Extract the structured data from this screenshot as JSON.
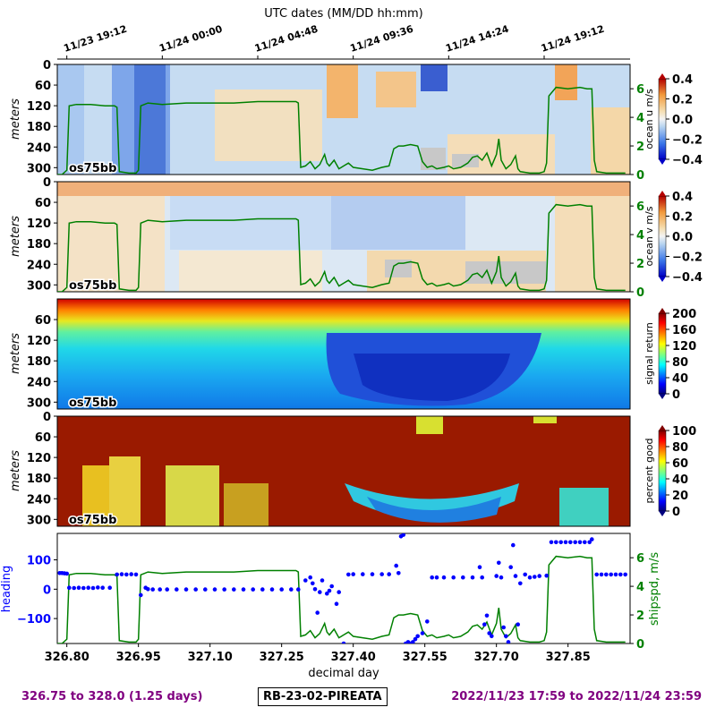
{
  "top_axis": {
    "label": "UTC dates (MM/DD hh:mm)",
    "ticks": [
      {
        "day": 326.8,
        "label": "11/23 19:12"
      },
      {
        "day": 327.0,
        "label": "11/24 00:00"
      },
      {
        "day": 327.2,
        "label": "11/24 04:48"
      },
      {
        "day": 327.4,
        "label": "11/24 09:36"
      },
      {
        "day": 327.6,
        "label": "11/24 14:24"
      },
      {
        "day": 327.8,
        "label": "11/24 19:12"
      }
    ]
  },
  "footer": {
    "left": "326.75 to 328.0 (1.25 days)",
    "center": "RB-23-02-PIREATA",
    "right": "2022/11/23 17:59 to 2022/11/24 23:59"
  },
  "colors": {
    "green": "#008000",
    "blue": "#0000ff",
    "purple": "#800080"
  },
  "chart_data": [
    {
      "type": "heatmap",
      "instrument": "os75bb",
      "ylabel": "meters",
      "yticks": [
        0,
        60,
        120,
        180,
        240,
        300
      ],
      "ylim": [
        320,
        0
      ],
      "xlim": [
        326.78,
        327.98
      ],
      "colorbar": {
        "label": "ocean u m/s",
        "ticks": [
          "0.4",
          "0.2",
          "0.0",
          "−0.2",
          "−0.4"
        ],
        "range": [
          -0.4,
          0.4
        ],
        "cmap": "coolwarm"
      },
      "right_axis": {
        "ticks": [
          "0",
          "2",
          "4",
          "6"
        ],
        "range": [
          0,
          7.7
        ]
      }
    },
    {
      "type": "heatmap",
      "instrument": "os75bb",
      "ylabel": "meters",
      "yticks": [
        0,
        60,
        120,
        180,
        240,
        300
      ],
      "ylim": [
        320,
        0
      ],
      "xlim": [
        326.78,
        327.98
      ],
      "colorbar": {
        "label": "ocean v m/s",
        "ticks": [
          "0.4",
          "0.2",
          "0.0",
          "−0.2",
          "−0.4"
        ],
        "range": [
          -0.4,
          0.4
        ],
        "cmap": "coolwarm"
      },
      "right_axis": {
        "ticks": [
          "0",
          "2",
          "4",
          "6"
        ],
        "range": [
          0,
          7.7
        ]
      }
    },
    {
      "type": "heatmap",
      "instrument": "os75bb",
      "ylabel": "meters",
      "yticks": [
        60,
        120,
        180,
        240,
        300
      ],
      "ylim": [
        320,
        0
      ],
      "xlim": [
        326.78,
        327.98
      ],
      "colorbar": {
        "label": "signal return",
        "ticks": [
          "200",
          "160",
          "120",
          "80",
          "40",
          "0"
        ],
        "range": [
          0,
          200
        ],
        "cmap": "jet"
      }
    },
    {
      "type": "heatmap",
      "instrument": "os75bb",
      "ylabel": "meters",
      "yticks": [
        0,
        60,
        120,
        180,
        240,
        300
      ],
      "ylim": [
        320,
        0
      ],
      "xlim": [
        326.78,
        327.98
      ],
      "colorbar": {
        "label": "percent good",
        "ticks": [
          "100",
          "80",
          "60",
          "40",
          "20",
          "0"
        ],
        "range": [
          0,
          100
        ],
        "cmap": "jet"
      }
    },
    {
      "type": "scatter",
      "xlabel": "decimal day",
      "xticks": [
        "326.80",
        "326.95",
        "327.10",
        "327.25",
        "327.40",
        "327.55",
        "327.70",
        "327.85"
      ],
      "xtick_values": [
        326.8,
        326.95,
        327.1,
        327.25,
        327.4,
        327.55,
        327.7,
        327.85
      ],
      "xlim": [
        326.78,
        327.98
      ],
      "ylabel": "heading",
      "yticks": [
        "100",
        "0",
        "−100"
      ],
      "ylim": [
        -185,
        190
      ],
      "right_ylabel": "shipspd, m/s",
      "right_yticks": [
        "0",
        "2",
        "4",
        "6"
      ],
      "right_ylim": [
        0,
        7.7
      ],
      "series": [
        {
          "name": "heading",
          "color": "#0000ff",
          "points": [
            [
              326.785,
              55
            ],
            [
              326.79,
              55
            ],
            [
              326.795,
              54
            ],
            [
              326.8,
              53
            ],
            [
              326.805,
              5
            ],
            [
              326.815,
              4
            ],
            [
              326.825,
              5
            ],
            [
              326.835,
              4
            ],
            [
              326.845,
              5
            ],
            [
              326.855,
              4
            ],
            [
              326.865,
              6
            ],
            [
              326.875,
              5
            ],
            [
              326.89,
              5
            ],
            [
              326.905,
              50
            ],
            [
              326.915,
              51
            ],
            [
              326.925,
              50
            ],
            [
              326.935,
              51
            ],
            [
              326.945,
              50
            ],
            [
              326.955,
              -20
            ],
            [
              326.965,
              5
            ],
            [
              326.97,
              0
            ],
            [
              326.98,
              -1
            ],
            [
              326.995,
              -1
            ],
            [
              327.01,
              -1
            ],
            [
              327.03,
              -1
            ],
            [
              327.05,
              -1
            ],
            [
              327.07,
              -1
            ],
            [
              327.09,
              -1
            ],
            [
              327.11,
              -1
            ],
            [
              327.13,
              -1
            ],
            [
              327.15,
              -1
            ],
            [
              327.17,
              -1
            ],
            [
              327.19,
              -1
            ],
            [
              327.21,
              -1
            ],
            [
              327.23,
              -1
            ],
            [
              327.25,
              -1
            ],
            [
              327.27,
              -1
            ],
            [
              327.285,
              -1
            ],
            [
              327.3,
              30
            ],
            [
              327.31,
              40
            ],
            [
              327.315,
              20
            ],
            [
              327.32,
              0
            ],
            [
              327.325,
              -80
            ],
            [
              327.33,
              -10
            ],
            [
              327.335,
              30
            ],
            [
              327.345,
              -15
            ],
            [
              327.35,
              -5
            ],
            [
              327.355,
              10
            ],
            [
              327.365,
              -50
            ],
            [
              327.37,
              -10
            ],
            [
              327.38,
              -185
            ],
            [
              327.39,
              50
            ],
            [
              327.4,
              51
            ],
            [
              327.42,
              51
            ],
            [
              327.44,
              51
            ],
            [
              327.46,
              51
            ],
            [
              327.475,
              51
            ],
            [
              327.49,
              80
            ],
            [
              327.495,
              55
            ],
            [
              327.5,
              180
            ],
            [
              327.505,
              185
            ],
            [
              327.51,
              -185
            ],
            [
              327.515,
              -180
            ],
            [
              327.52,
              -185
            ],
            [
              327.525,
              -180
            ],
            [
              327.53,
              -170
            ],
            [
              327.535,
              -160
            ],
            [
              327.545,
              -150
            ],
            [
              327.555,
              -110
            ],
            [
              327.565,
              40
            ],
            [
              327.575,
              40
            ],
            [
              327.59,
              40
            ],
            [
              327.61,
              40
            ],
            [
              327.63,
              40
            ],
            [
              327.65,
              40
            ],
            [
              327.665,
              75
            ],
            [
              327.67,
              40
            ],
            [
              327.675,
              -120
            ],
            [
              327.68,
              -90
            ],
            [
              327.685,
              -150
            ],
            [
              327.69,
              -160
            ],
            [
              327.7,
              45
            ],
            [
              327.705,
              90
            ],
            [
              327.71,
              40
            ],
            [
              327.715,
              -130
            ],
            [
              327.72,
              -160
            ],
            [
              327.725,
              -180
            ],
            [
              327.73,
              75
            ],
            [
              327.735,
              150
            ],
            [
              327.74,
              45
            ],
            [
              327.745,
              -120
            ],
            [
              327.75,
              20
            ],
            [
              327.76,
              50
            ],
            [
              327.77,
              40
            ],
            [
              327.78,
              42
            ],
            [
              327.79,
              45
            ],
            [
              327.805,
              46
            ],
            [
              327.815,
              160
            ],
            [
              327.825,
              160
            ],
            [
              327.835,
              160
            ],
            [
              327.845,
              160
            ],
            [
              327.855,
              160
            ],
            [
              327.865,
              160
            ],
            [
              327.875,
              160
            ],
            [
              327.885,
              160
            ],
            [
              327.895,
              160
            ],
            [
              327.9,
              170
            ],
            [
              327.91,
              50
            ],
            [
              327.92,
              50
            ],
            [
              327.93,
              50
            ],
            [
              327.94,
              50
            ],
            [
              327.95,
              50
            ],
            [
              327.96,
              50
            ],
            [
              327.97,
              50
            ]
          ]
        },
        {
          "name": "shipspd",
          "color": "#008000",
          "points": [
            [
              326.78,
              0
            ],
            [
              326.79,
              0
            ],
            [
              326.8,
              0.3
            ],
            [
              326.805,
              4.8
            ],
            [
              326.82,
              4.9
            ],
            [
              326.85,
              4.9
            ],
            [
              326.88,
              4.8
            ],
            [
              326.9,
              4.8
            ],
            [
              326.905,
              4.7
            ],
            [
              326.91,
              0.2
            ],
            [
              326.93,
              0.1
            ],
            [
              326.945,
              0.1
            ],
            [
              326.95,
              0.3
            ],
            [
              326.955,
              4.8
            ],
            [
              326.97,
              5.0
            ],
            [
              327.0,
              4.9
            ],
            [
              327.05,
              5.0
            ],
            [
              327.1,
              5.0
            ],
            [
              327.15,
              5.0
            ],
            [
              327.2,
              5.1
            ],
            [
              327.25,
              5.1
            ],
            [
              327.28,
              5.1
            ],
            [
              327.285,
              5.0
            ],
            [
              327.29,
              0.5
            ],
            [
              327.3,
              0.6
            ],
            [
              327.31,
              0.9
            ],
            [
              327.32,
              0.4
            ],
            [
              327.33,
              0.7
            ],
            [
              327.34,
              1.4
            ],
            [
              327.345,
              0.8
            ],
            [
              327.35,
              0.6
            ],
            [
              327.36,
              1.0
            ],
            [
              327.37,
              0.4
            ],
            [
              327.38,
              0.6
            ],
            [
              327.39,
              0.8
            ],
            [
              327.4,
              0.5
            ],
            [
              327.42,
              0.4
            ],
            [
              327.44,
              0.3
            ],
            [
              327.46,
              0.5
            ],
            [
              327.475,
              0.6
            ],
            [
              327.485,
              1.8
            ],
            [
              327.495,
              2.0
            ],
            [
              327.505,
              2.0
            ],
            [
              327.52,
              2.1
            ],
            [
              327.535,
              2.0
            ],
            [
              327.545,
              0.9
            ],
            [
              327.555,
              0.5
            ],
            [
              327.565,
              0.6
            ],
            [
              327.575,
              0.4
            ],
            [
              327.59,
              0.5
            ],
            [
              327.6,
              0.6
            ],
            [
              327.61,
              0.4
            ],
            [
              327.625,
              0.5
            ],
            [
              327.64,
              0.8
            ],
            [
              327.65,
              1.2
            ],
            [
              327.66,
              1.3
            ],
            [
              327.67,
              1.0
            ],
            [
              327.68,
              1.5
            ],
            [
              327.69,
              0.6
            ],
            [
              327.7,
              1.4
            ],
            [
              327.705,
              2.5
            ],
            [
              327.71,
              1.0
            ],
            [
              327.72,
              0.4
            ],
            [
              327.73,
              0.7
            ],
            [
              327.74,
              1.3
            ],
            [
              327.745,
              0.4
            ],
            [
              327.75,
              0.2
            ],
            [
              327.77,
              0.1
            ],
            [
              327.79,
              0.1
            ],
            [
              327.8,
              0.2
            ],
            [
              327.805,
              0.8
            ],
            [
              327.81,
              5.5
            ],
            [
              327.825,
              6.1
            ],
            [
              327.85,
              6.0
            ],
            [
              327.875,
              6.1
            ],
            [
              327.89,
              6.0
            ],
            [
              327.9,
              6.0
            ],
            [
              327.905,
              1.0
            ],
            [
              327.91,
              0.2
            ],
            [
              327.93,
              0.1
            ],
            [
              327.95,
              0.1
            ],
            [
              327.97,
              0.1
            ]
          ]
        }
      ]
    }
  ]
}
